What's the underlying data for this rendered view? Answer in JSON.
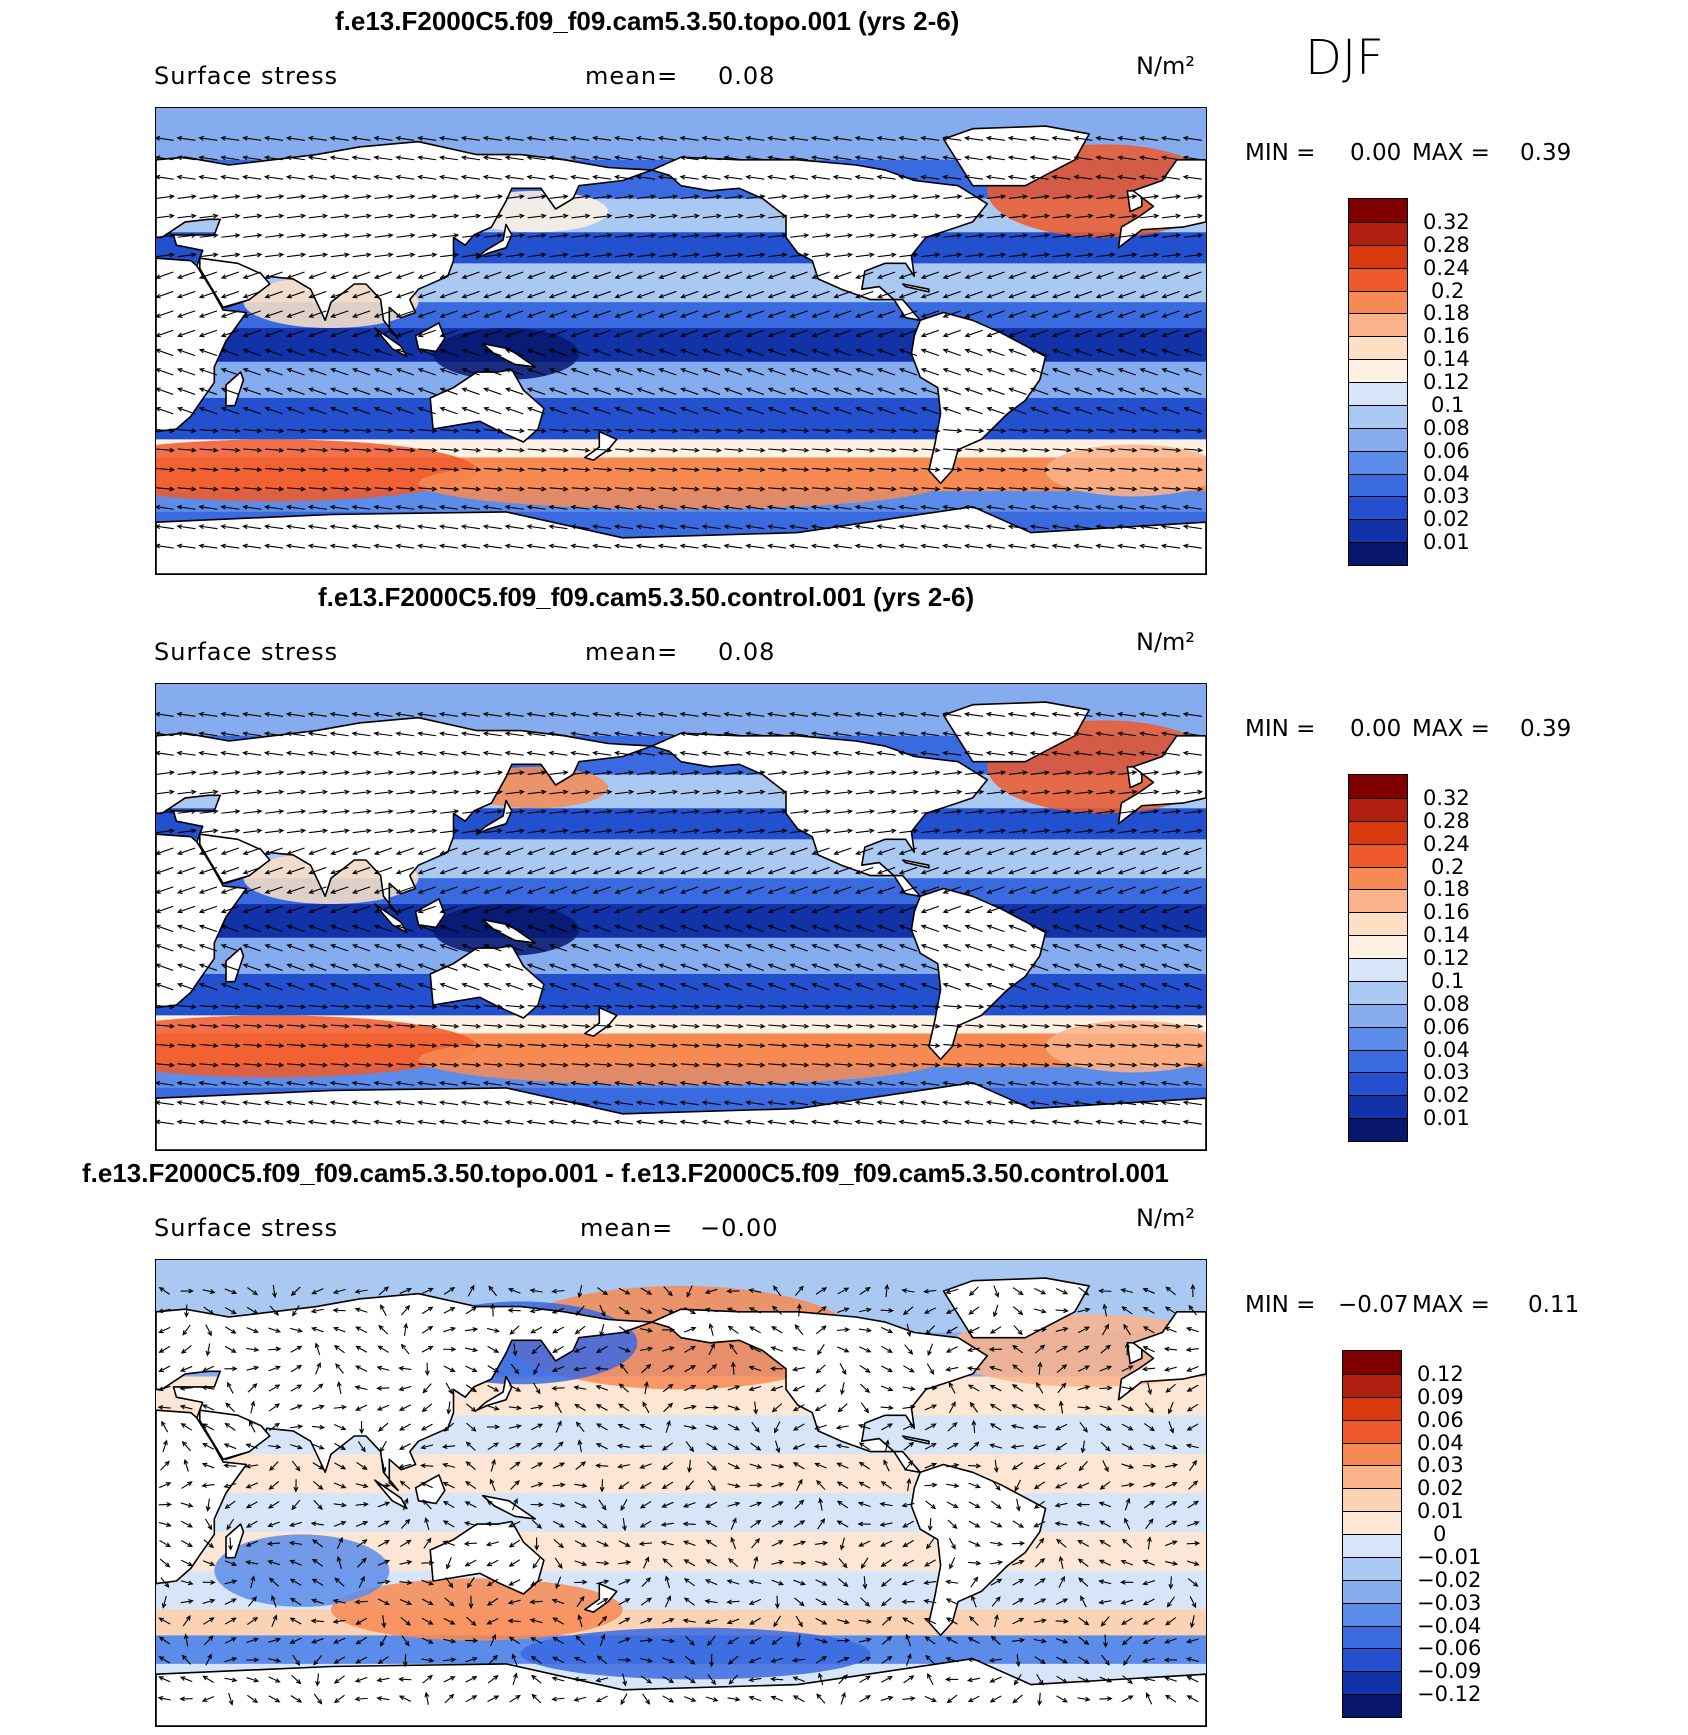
{
  "season": "DJF",
  "panels": [
    {
      "title": "f.e13.F2000C5.f09_f09.cam5.3.50.topo.001 (yrs 2-6)",
      "variable": "Surface stress",
      "mean_label": "mean=",
      "mean_value": "0.08",
      "units": "N/m²",
      "min_label": "MIN =",
      "min_value": "0.00",
      "max_label": "MAX =",
      "max_value": "0.39",
      "colorbar": [
        "0.32",
        "0.28",
        "0.24",
        "0.2",
        "0.18",
        "0.16",
        "0.14",
        "0.12",
        "0.1",
        "0.08",
        "0.06",
        "0.04",
        "0.03",
        "0.02",
        "0.01"
      ]
    },
    {
      "title": "f.e13.F2000C5.f09_f09.cam5.3.50.control.001 (yrs 2-6)",
      "variable": "Surface stress",
      "mean_label": "mean=",
      "mean_value": "0.08",
      "units": "N/m²",
      "min_label": "MIN =",
      "min_value": "0.00",
      "max_label": "MAX =",
      "max_value": "0.39",
      "colorbar": [
        "0.32",
        "0.28",
        "0.24",
        "0.2",
        "0.18",
        "0.16",
        "0.14",
        "0.12",
        "0.1",
        "0.08",
        "0.06",
        "0.04",
        "0.03",
        "0.02",
        "0.01"
      ]
    },
    {
      "title": "f.e13.F2000C5.f09_f09.cam5.3.50.topo.001 - f.e13.F2000C5.f09_f09.cam5.3.50.control.001",
      "variable": "Surface stress",
      "mean_label": "mean=",
      "mean_value": "−0.00",
      "units": "N/m²",
      "min_label": "MIN =",
      "min_value": "−0.07",
      "max_label": "MAX =",
      "max_value": "0.11",
      "colorbar": [
        "0.12",
        "0.09",
        "0.06",
        "0.04",
        "0.03",
        "0.02",
        "0.01",
        "0",
        "−0.01",
        "−0.02",
        "−0.03",
        "−0.04",
        "−0.06",
        "−0.09",
        "−0.12"
      ]
    }
  ],
  "colors": {
    "abs_scale": [
      "#7f0000",
      "#b01e10",
      "#d83a10",
      "#f0592c",
      "#f78a52",
      "#fbb389",
      "#fde0c4",
      "#fff2e4",
      "#d6e6f8",
      "#aac9f2",
      "#84acef",
      "#5b8cea",
      "#3a6ae0",
      "#2250cf",
      "#1232a8",
      "#08166e"
    ],
    "diff_scale": [
      "#7f0000",
      "#b01e10",
      "#d83a10",
      "#f0592c",
      "#f78a52",
      "#fbb389",
      "#fcd2b4",
      "#fde7d4",
      "#d6e6f8",
      "#aac9f2",
      "#84acef",
      "#5b8cea",
      "#3a6ae0",
      "#2250cf",
      "#1232a8",
      "#08166e"
    ],
    "land": "#ffffff",
    "coast": "#000000"
  },
  "chart_data": [
    {
      "type": "heatmap",
      "title": "f.e13.F2000C5.f09_f09.cam5.3.50.topo.001 (yrs 2-6)",
      "variable": "Surface stress",
      "units": "N/m²",
      "mean": 0.08,
      "min": 0.0,
      "max": 0.39,
      "levels": [
        0.01,
        0.02,
        0.03,
        0.04,
        0.06,
        0.08,
        0.1,
        0.12,
        0.14,
        0.16,
        0.18,
        0.2,
        0.24,
        0.28,
        0.32
      ],
      "overlay": "vectors"
    },
    {
      "type": "heatmap",
      "title": "f.e13.F2000C5.f09_f09.cam5.3.50.control.001 (yrs 2-6)",
      "variable": "Surface stress",
      "units": "N/m²",
      "mean": 0.08,
      "min": 0.0,
      "max": 0.39,
      "levels": [
        0.01,
        0.02,
        0.03,
        0.04,
        0.06,
        0.08,
        0.1,
        0.12,
        0.14,
        0.16,
        0.18,
        0.2,
        0.24,
        0.28,
        0.32
      ],
      "overlay": "vectors"
    },
    {
      "type": "heatmap",
      "title": "f.e13.F2000C5.f09_f09.cam5.3.50.topo.001 - f.e13.F2000C5.f09_f09.cam5.3.50.control.001",
      "variable": "Surface stress",
      "units": "N/m²",
      "mean": -0.0,
      "min": -0.07,
      "max": 0.11,
      "levels": [
        -0.12,
        -0.09,
        -0.06,
        -0.04,
        -0.03,
        -0.02,
        -0.01,
        0,
        0.01,
        0.02,
        0.03,
        0.04,
        0.06,
        0.09,
        0.12
      ],
      "overlay": "vectors"
    }
  ]
}
